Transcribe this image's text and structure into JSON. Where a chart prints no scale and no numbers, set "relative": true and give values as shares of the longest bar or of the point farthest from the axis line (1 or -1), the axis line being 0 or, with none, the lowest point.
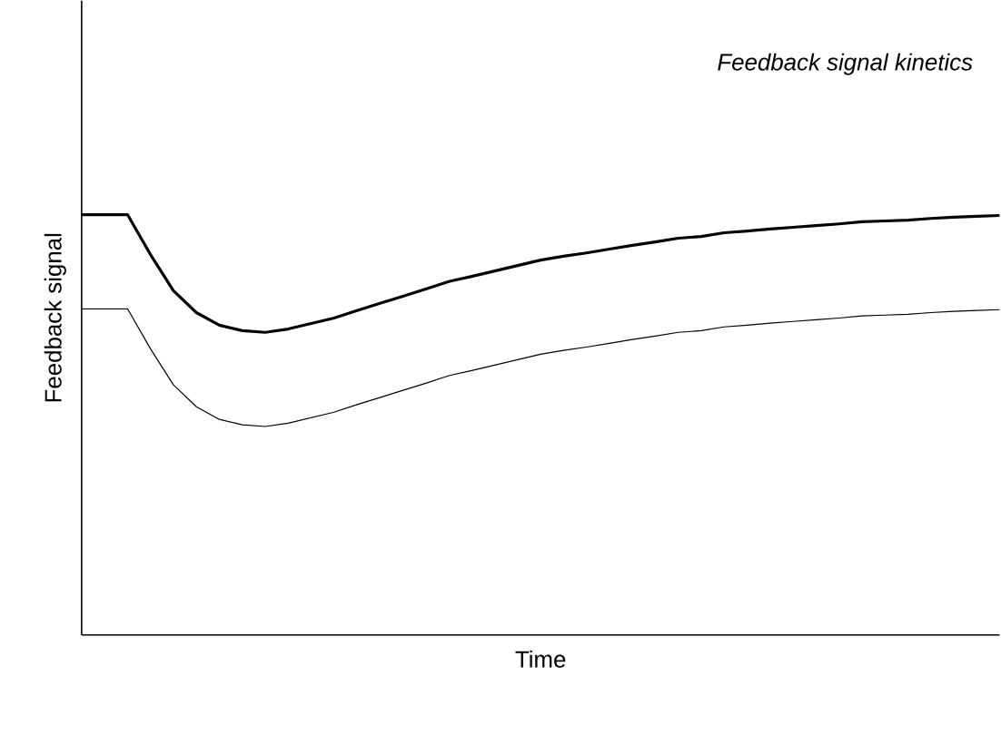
{
  "chart_data": {
    "type": "line",
    "title": "Feedback signal kinetics",
    "xlabel": "Time",
    "ylabel": "Feedback signal",
    "relative": true,
    "categories": [
      null,
      null,
      null,
      null,
      null,
      null,
      null,
      null,
      null,
      null,
      null,
      null,
      null,
      null,
      null,
      null,
      null,
      null,
      null,
      null,
      null,
      null,
      null,
      null,
      null,
      null,
      null,
      null,
      null,
      null,
      null,
      null,
      null,
      null,
      null,
      null,
      null,
      null,
      null,
      null,
      null
    ],
    "series": [
      {
        "color": "#000000",
        "values": [
          1.0,
          1.0,
          1.0,
          0.905,
          0.819,
          0.767,
          0.737,
          0.724,
          0.72,
          0.728,
          0.741,
          0.754,
          0.772,
          0.789,
          0.806,
          0.823,
          0.841,
          0.853,
          0.866,
          0.879,
          0.892,
          0.901,
          0.909,
          0.918,
          0.927,
          0.935,
          0.944,
          0.948,
          0.957,
          0.961,
          0.966,
          0.97,
          0.974,
          0.978,
          0.983,
          0.985,
          0.987,
          0.991,
          0.994,
          0.996,
          0.998
        ]
      },
      {
        "color": "#000000",
        "values": [
          0.776,
          0.776,
          0.776,
          0.681,
          0.595,
          0.543,
          0.513,
          0.5,
          0.496,
          0.504,
          0.517,
          0.53,
          0.548,
          0.565,
          0.582,
          0.599,
          0.617,
          0.629,
          0.642,
          0.655,
          0.668,
          0.677,
          0.685,
          0.694,
          0.703,
          0.711,
          0.72,
          0.724,
          0.733,
          0.737,
          0.742,
          0.746,
          0.75,
          0.754,
          0.759,
          0.761,
          0.763,
          0.767,
          0.77,
          0.772,
          0.774
        ]
      }
    ]
  }
}
